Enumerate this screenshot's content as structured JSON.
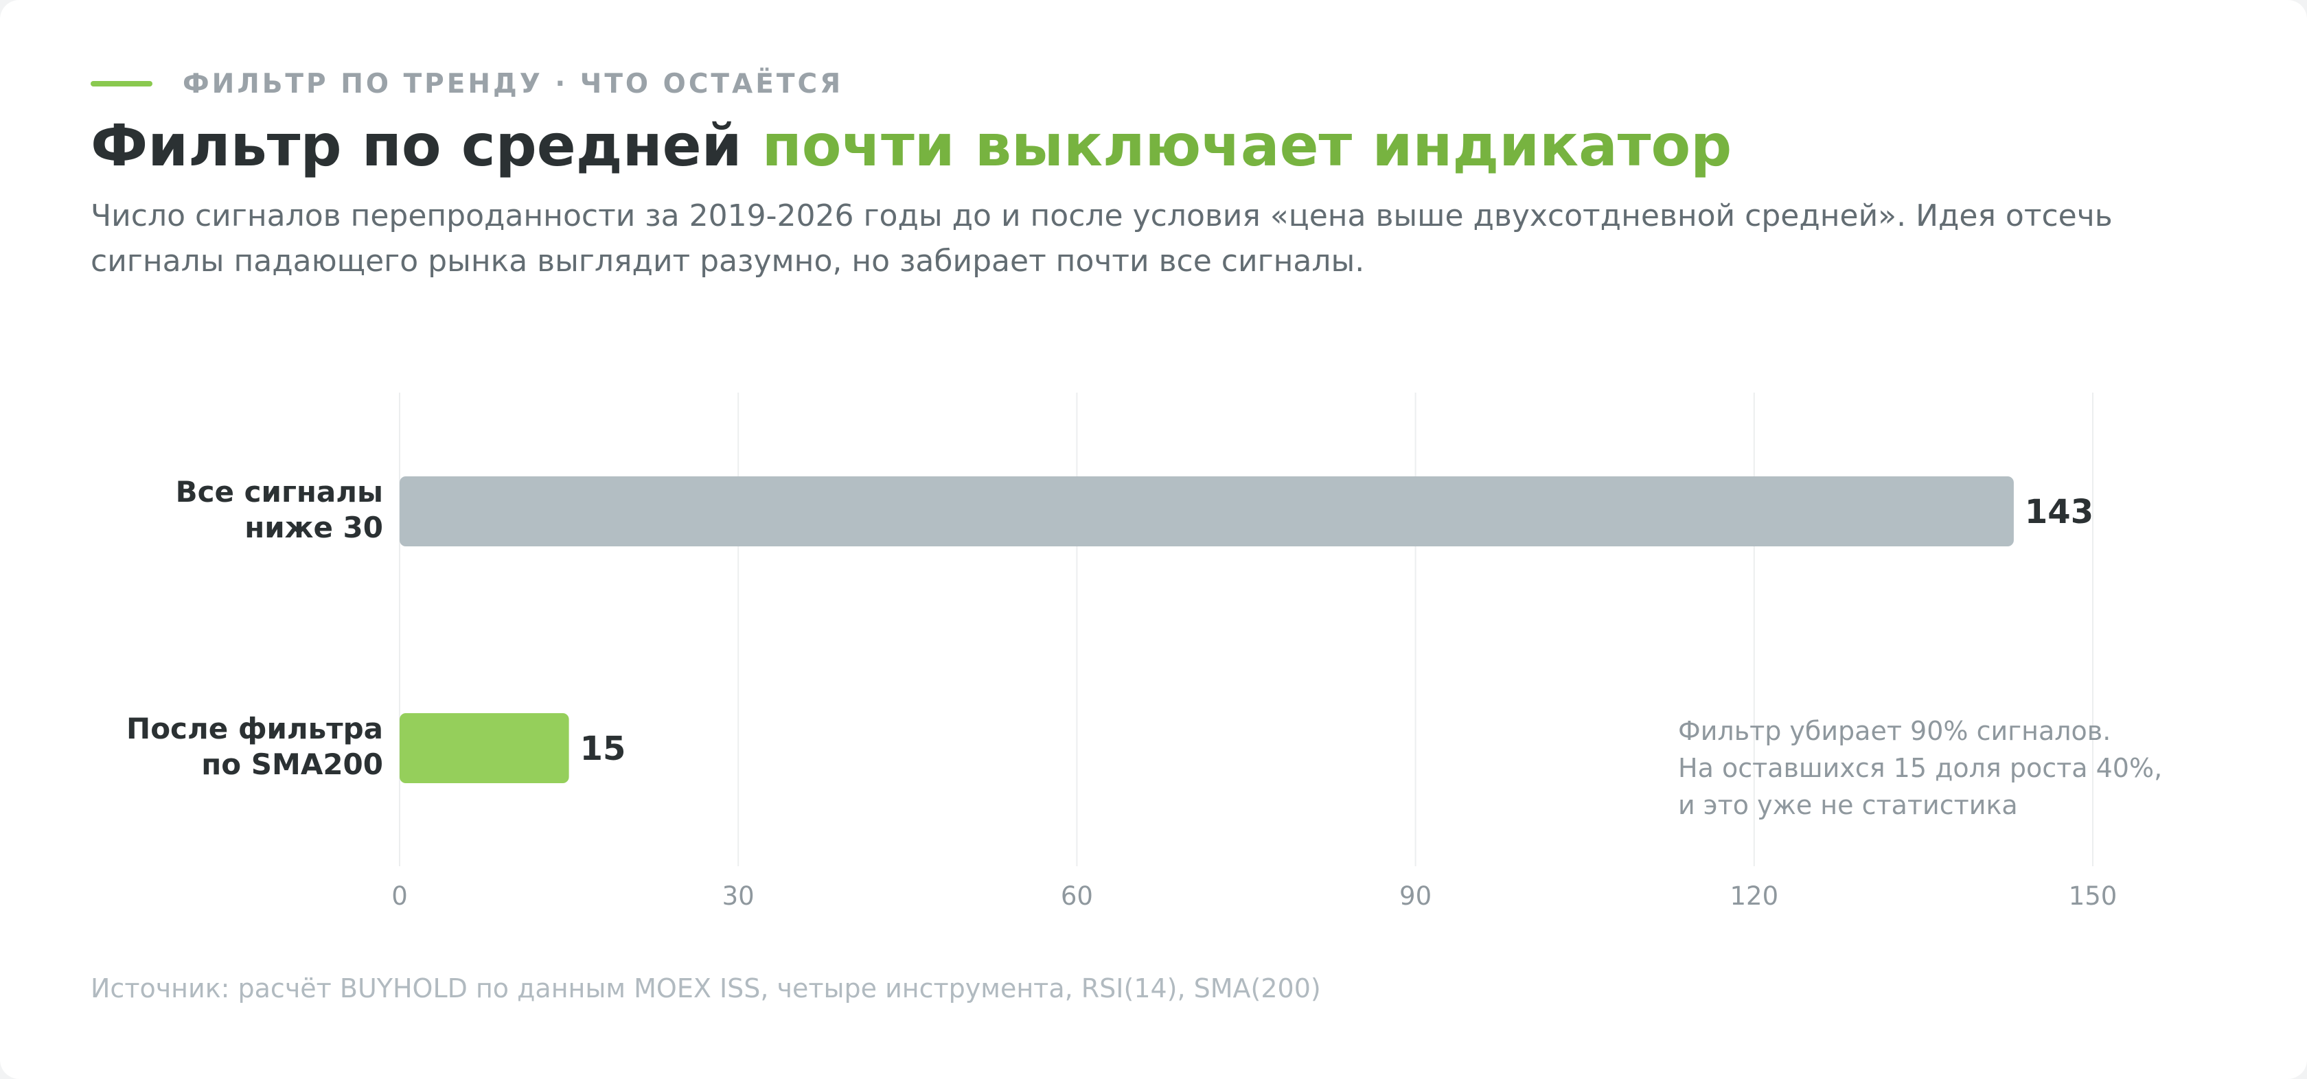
{
  "kicker": "ФИЛЬТР ПО ТРЕНДУ · ЧТО ОСТАЁТСЯ",
  "title": {
    "main": "Фильтр по средней",
    "accent": "почти выключает индикатор"
  },
  "subtitle": "Число сигналов перепроданности за 2019-2026 годы до и после условия «цена выше двухсотдневной средней». Идея отсечь сигналы падающего рынка выглядит разумно, но забирает почти все сигналы.",
  "source": "Источник: расчёт BUYHOLD по данным MOEX ISS, четыре инструмента, RSI(14), SMA(200)",
  "colors": {
    "accent": "#77b340",
    "bar_all": "#b3bec3",
    "bar_filtered": "#95cf5b",
    "text_dark": "#2b3133",
    "text_muted": "#9aa2a8",
    "grid": "#eceeef"
  },
  "chart_data": {
    "type": "bar",
    "orientation": "horizontal",
    "categories": [
      [
        "Все сигналы",
        "ниже 30"
      ],
      [
        "После фильтра",
        "по SMA200"
      ]
    ],
    "values": [
      143,
      15
    ],
    "data_labels": [
      "143",
      "15"
    ],
    "xlim": [
      0,
      150
    ],
    "xticks": [
      0,
      30,
      60,
      90,
      120,
      150
    ],
    "xtick_labels": [
      "0",
      "30",
      "60",
      "90",
      "120",
      "150"
    ],
    "grid": "vertical",
    "annotation": [
      "Фильтр убирает 90% сигналов.",
      "На оставшихся 15 доля роста 40%,",
      "и это уже не статистика"
    ]
  }
}
